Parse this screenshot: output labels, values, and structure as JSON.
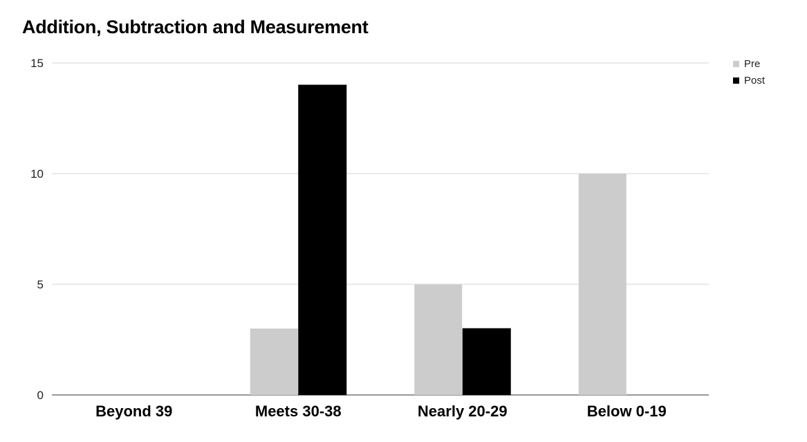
{
  "chart_data": {
    "type": "bar",
    "title": "Addition, Subtraction and Measurement",
    "categories": [
      "Beyond 39",
      "Meets 30-38",
      "Nearly 20-29",
      "Below 0-19"
    ],
    "series": [
      {
        "name": "Pre",
        "color": "#cccccc",
        "values": [
          0,
          3,
          5,
          10
        ]
      },
      {
        "name": "Post",
        "color": "#000000",
        "values": [
          0,
          14,
          3,
          0
        ]
      }
    ],
    "ylim": [
      0,
      15
    ],
    "yticks": [
      0,
      5,
      10,
      15
    ],
    "xlabel": "",
    "ylabel": "",
    "grid": true,
    "legend_position": "top-right"
  }
}
